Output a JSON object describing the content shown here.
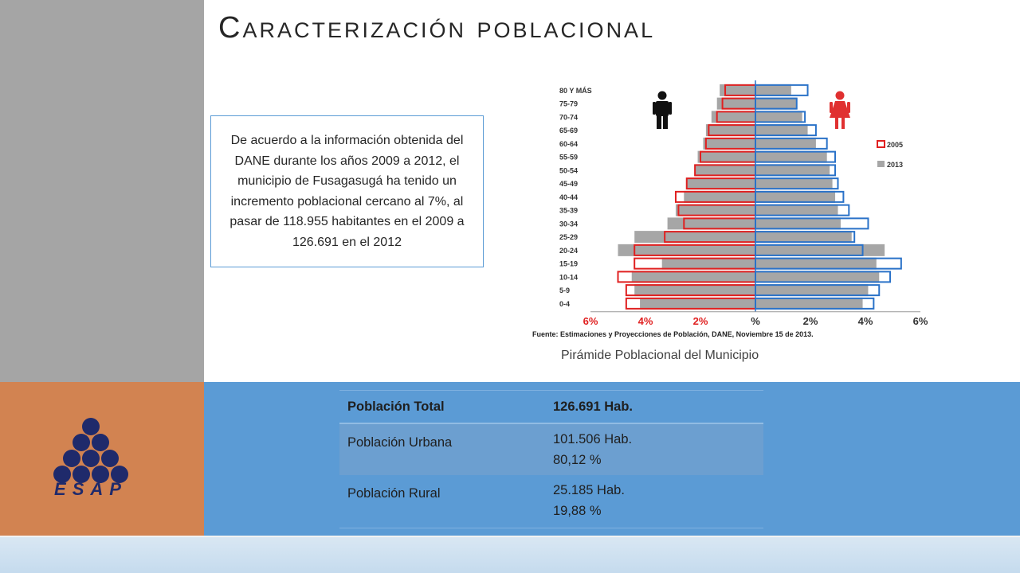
{
  "slide": {
    "title": "Caracterización poblacional",
    "info_text": "De acuerdo a la información obtenida del DANE durante los años 2009 a 2012, el municipio de Fusagasugá ha tenido un incremento poblacional cercano al 7%, al pasar de 118.955 habitantes en el 2009 a 126.691 en el 2012",
    "caption": "Pirámide Poblacional del Municipio",
    "logo_text": "ESAP",
    "colors": {
      "left_gray": "#a5a5a5",
      "left_orange": "#d28351",
      "blue": "#5b9bd5",
      "male_2005": "#e02020",
      "female_2005": "#2a72c8",
      "bar_2013": "#a6a6a6",
      "logo": "#1f2a6b"
    }
  },
  "table": {
    "rows": [
      {
        "label": "Población Total",
        "value1": "126.691 Hab.",
        "value2": ""
      },
      {
        "label": "Población Urbana",
        "value1": "101.506 Hab.",
        "value2": "80,12 %"
      },
      {
        "label": "Población Rural",
        "value1": "25.185 Hab.",
        "value2": "19,88 %"
      }
    ]
  },
  "chart_data": {
    "type": "bar",
    "orientation": "horizontal-pyramid",
    "categories": [
      "0-4",
      "5-9",
      "10-14",
      "15-19",
      "20-24",
      "25-29",
      "30-34",
      "35-39",
      "40-44",
      "45-49",
      "50-54",
      "55-59",
      "60-64",
      "65-69",
      "70-74",
      "75-79",
      "80 Y MÁS"
    ],
    "series": [
      {
        "name": "2005",
        "sex": "male",
        "values": [
          4.7,
          4.7,
          5.0,
          4.4,
          4.4,
          3.3,
          2.6,
          2.8,
          2.9,
          2.5,
          2.2,
          2.0,
          1.8,
          1.7,
          1.4,
          1.2,
          1.1
        ]
      },
      {
        "name": "2005",
        "sex": "female",
        "values": [
          4.3,
          4.5,
          4.9,
          5.3,
          3.9,
          3.6,
          4.1,
          3.4,
          3.2,
          3.0,
          2.9,
          2.9,
          2.6,
          2.2,
          1.8,
          1.5,
          1.9
        ]
      },
      {
        "name": "2013",
        "sex": "male",
        "values": [
          4.2,
          4.4,
          4.5,
          3.4,
          5.0,
          4.4,
          3.2,
          2.9,
          2.6,
          2.5,
          2.2,
          2.1,
          1.9,
          1.8,
          1.6,
          1.4,
          1.3
        ]
      },
      {
        "name": "2013",
        "sex": "female",
        "values": [
          3.9,
          4.1,
          4.5,
          4.4,
          4.7,
          3.5,
          3.1,
          3.0,
          2.9,
          2.8,
          2.7,
          2.6,
          2.2,
          1.9,
          1.7,
          1.5,
          1.3
        ]
      }
    ],
    "xticks_left": [
      "6%",
      "4%",
      "2%"
    ],
    "xticks_right": [
      "%",
      "2%",
      "4%",
      "6%"
    ],
    "xlim": [
      -6,
      6
    ],
    "legend": [
      {
        "label": "2005"
      },
      {
        "label": "2013"
      }
    ],
    "legend_position": "right",
    "source": "Fuente: Estimaciones y Proyecciones de Población, DANE, Noviembre 15 de 2013."
  }
}
